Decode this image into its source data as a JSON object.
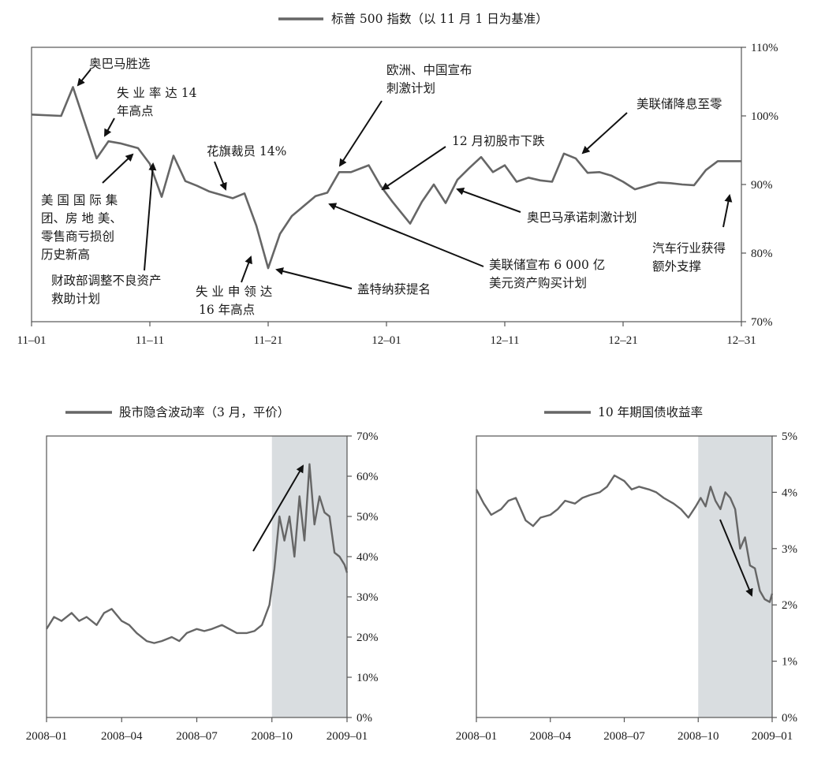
{
  "colors": {
    "line": "#666666",
    "frame": "#555555",
    "shade": "#d9dde0",
    "arrow": "#111111",
    "text": "#1a1a1a"
  },
  "chart_data": [
    {
      "type": "line",
      "legend": "标普 500 指数（以 11 月 1 日为基准）",
      "legend_position": "top",
      "x_ticks": [
        "11–01",
        "11–11",
        "11–21",
        "12–01",
        "12–11",
        "12–21",
        "12–31"
      ],
      "y_ticks": [
        "70%",
        "80%",
        "90%",
        "100%",
        "110%"
      ],
      "xlim": [
        0,
        60
      ],
      "ylim": [
        70,
        110
      ],
      "y_axis_side": "right",
      "series": [
        {
          "x": [
            0,
            2.5,
            3.5,
            5.5,
            6.5,
            7.5,
            9,
            10,
            11,
            12,
            13,
            14,
            15,
            17,
            18,
            19,
            20,
            21,
            22,
            24,
            25,
            26,
            27,
            28.5,
            29.5,
            30.5,
            32,
            33,
            34,
            35,
            36,
            37,
            38,
            39,
            40,
            41,
            42,
            43,
            44,
            45,
            46,
            47,
            48,
            49,
            50,
            51,
            52,
            53,
            54,
            55,
            56,
            57,
            58,
            59,
            60
          ],
          "y": [
            100.2,
            100,
            104.2,
            93.8,
            96.3,
            96,
            95.3,
            93,
            88.2,
            94.2,
            90.5,
            89.8,
            89,
            88,
            88.7,
            84,
            77.8,
            82.8,
            85.4,
            88.3,
            88.8,
            91.8,
            91.8,
            92.8,
            89.8,
            87.5,
            84.3,
            87.5,
            90,
            87.3,
            90.7,
            92.4,
            94,
            91.8,
            92.8,
            90.4,
            91,
            90.6,
            90.4,
            94.5,
            93.8,
            91.7,
            91.8,
            91.3,
            90.4,
            89.3,
            89.8,
            90.3,
            90.2,
            90,
            89.9,
            92.1,
            93.4,
            93.4,
            93.4
          ]
        }
      ],
      "annotations": [
        "奥巴马胜选",
        "失 业 率 达 14|年高点",
        "美 国 国 际 集|团、房 地 美、|零售商亏损创|历史新高",
        "财政部调整不良资产|救助计划",
        "花旗裁员 14%",
        "失 业 申 领 达|16 年高点",
        "盖特纳获提名",
        "欧洲、中国宣布|刺激计划",
        "12 月初股市下跌",
        "美联储宣布 6 000 亿|美元资产购买计划",
        "奥巴马承诺刺激计划",
        "美联储降息至零",
        "汽车行业获得|额外支撑"
      ]
    },
    {
      "type": "line",
      "legend": "股市隐含波动率（3 月，平价）",
      "legend_position": "top",
      "x_ticks": [
        "2008–01",
        "2008–04",
        "2008–07",
        "2008–10",
        "2009–01"
      ],
      "y_ticks": [
        "0%",
        "10%",
        "20%",
        "30%",
        "40%",
        "50%",
        "60%",
        "70%"
      ],
      "xlim": [
        0,
        12
      ],
      "ylim": [
        0,
        70
      ],
      "y_axis_side": "right",
      "shaded_range": [
        9,
        12
      ],
      "series": [
        {
          "x": [
            0,
            0.3,
            0.6,
            1,
            1.3,
            1.6,
            2,
            2.3,
            2.6,
            3,
            3.3,
            3.6,
            4,
            4.3,
            4.6,
            5,
            5.3,
            5.6,
            6,
            6.3,
            6.6,
            7,
            7.3,
            7.6,
            8,
            8.3,
            8.6,
            8.9,
            9.1,
            9.3,
            9.5,
            9.7,
            9.9,
            10.1,
            10.3,
            10.5,
            10.7,
            10.9,
            11.1,
            11.3,
            11.5,
            11.7,
            11.9,
            12
          ],
          "y": [
            22,
            25,
            24,
            26,
            24,
            25,
            23,
            26,
            27,
            24,
            23,
            21,
            19,
            18.5,
            19,
            20,
            19,
            21,
            22,
            21.5,
            22,
            23,
            22,
            21,
            21,
            21.5,
            23,
            28,
            37,
            50,
            44,
            50,
            40,
            55,
            44,
            63,
            48,
            55,
            51,
            50,
            41,
            40,
            38,
            36
          ]
        }
      ]
    },
    {
      "type": "line",
      "legend": "10 年期国债收益率",
      "legend_position": "top",
      "x_ticks": [
        "2008–01",
        "2008–04",
        "2008–07",
        "2008–10",
        "2009–01"
      ],
      "y_ticks": [
        "0%",
        "1%",
        "2%",
        "3%",
        "4%",
        "5%"
      ],
      "xlim": [
        0,
        12
      ],
      "ylim": [
        0,
        5
      ],
      "y_axis_side": "right",
      "shaded_range": [
        9,
        12
      ],
      "series": [
        {
          "x": [
            0,
            0.3,
            0.6,
            1,
            1.3,
            1.6,
            2,
            2.3,
            2.6,
            3,
            3.3,
            3.6,
            4,
            4.3,
            4.6,
            5,
            5.3,
            5.6,
            6,
            6.3,
            6.6,
            7,
            7.3,
            7.6,
            8,
            8.3,
            8.6,
            8.9,
            9.1,
            9.3,
            9.5,
            9.7,
            9.9,
            10.1,
            10.3,
            10.5,
            10.7,
            10.9,
            11.1,
            11.3,
            11.5,
            11.7,
            11.9,
            12
          ],
          "y": [
            4.05,
            3.8,
            3.6,
            3.7,
            3.85,
            3.9,
            3.5,
            3.4,
            3.55,
            3.6,
            3.7,
            3.85,
            3.8,
            3.9,
            3.95,
            4.0,
            4.1,
            4.3,
            4.2,
            4.05,
            4.1,
            4.05,
            4.0,
            3.9,
            3.8,
            3.7,
            3.55,
            3.75,
            3.9,
            3.75,
            4.1,
            3.85,
            3.7,
            4.0,
            3.9,
            3.7,
            3.0,
            3.2,
            2.7,
            2.65,
            2.25,
            2.1,
            2.05,
            2.2
          ]
        }
      ]
    }
  ]
}
